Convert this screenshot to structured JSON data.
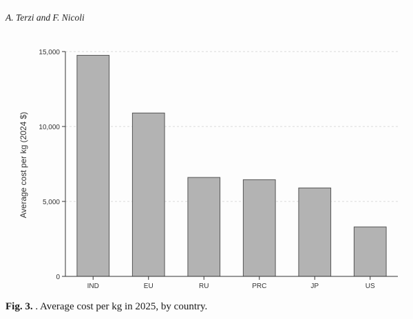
{
  "header": {
    "authors": "A. Terzi and F. Nicoli"
  },
  "caption": {
    "label": "Fig. 3.",
    "text": ". Average cost per kg in 2025, by country."
  },
  "colors": {
    "bar_fill": "#b3b3b3",
    "bar_stroke": "#555555",
    "grid": "#d9d9d9",
    "axis": "#333333"
  },
  "chart_data": {
    "type": "bar",
    "categories": [
      "IND",
      "EU",
      "RU",
      "PRC",
      "JP",
      "US"
    ],
    "values": [
      14750,
      10900,
      6600,
      6450,
      5900,
      3300
    ],
    "title": "",
    "xlabel": "",
    "ylabel": "Average cost per kg (2024 $)",
    "ylim": [
      0,
      15000
    ],
    "yticks": [
      0,
      5000,
      10000,
      15000
    ],
    "ytick_labels": [
      "0",
      "5,000",
      "10,000",
      "15,000"
    ],
    "grid": true
  }
}
